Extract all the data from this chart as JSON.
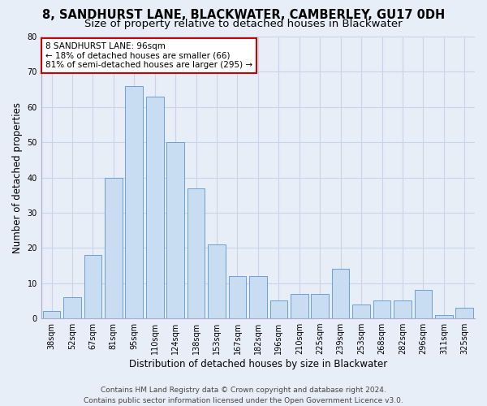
{
  "title": "8, SANDHURST LANE, BLACKWATER, CAMBERLEY, GU17 0DH",
  "subtitle": "Size of property relative to detached houses in Blackwater",
  "xlabel": "Distribution of detached houses by size in Blackwater",
  "ylabel": "Number of detached properties",
  "categories": [
    "38sqm",
    "52sqm",
    "67sqm",
    "81sqm",
    "95sqm",
    "110sqm",
    "124sqm",
    "138sqm",
    "153sqm",
    "167sqm",
    "182sqm",
    "196sqm",
    "210sqm",
    "225sqm",
    "239sqm",
    "253sqm",
    "268sqm",
    "282sqm",
    "296sqm",
    "311sqm",
    "325sqm"
  ],
  "values": [
    2,
    6,
    18,
    40,
    66,
    63,
    50,
    37,
    21,
    12,
    12,
    5,
    7,
    7,
    14,
    4,
    5,
    5,
    8,
    1,
    3
  ],
  "bar_color": "#c9ddf2",
  "bar_edge_color": "#6b9fd4",
  "annotation_text": "8 SANDHURST LANE: 96sqm\n← 18% of detached houses are smaller (66)\n81% of semi-detached houses are larger (295) →",
  "annotation_box_color": "white",
  "annotation_box_edge_color": "#cc0000",
  "ylim": [
    0,
    80
  ],
  "yticks": [
    0,
    10,
    20,
    30,
    40,
    50,
    60,
    70,
    80
  ],
  "grid_color": "#c8d4e8",
  "background_color": "#e8eef8",
  "footer_line1": "Contains HM Land Registry data © Crown copyright and database right 2024.",
  "footer_line2": "Contains public sector information licensed under the Open Government Licence v3.0.",
  "title_fontsize": 10.5,
  "subtitle_fontsize": 9.5,
  "xlabel_fontsize": 8.5,
  "ylabel_fontsize": 8.5,
  "tick_fontsize": 7,
  "annotation_fontsize": 7.5,
  "footer_fontsize": 6.5
}
